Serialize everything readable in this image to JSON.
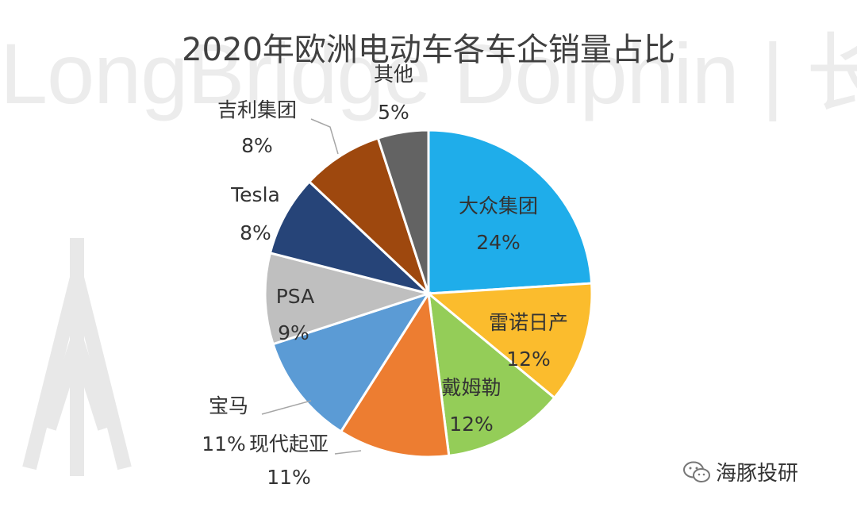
{
  "watermark": {
    "text": "LongBridge Dolphin | 长桥海豚投研"
  },
  "footer": {
    "label": "海豚投研",
    "icon": "wechat-icon"
  },
  "chart_data": {
    "type": "pie",
    "title": "2020年欧洲电动车各车企销量占比",
    "slices": [
      {
        "label": "大众集团",
        "value": 24,
        "value_label": "24%",
        "color": "#1fadea",
        "text_color": "#333333"
      },
      {
        "label": "雷诺日产",
        "value": 12,
        "value_label": "12%",
        "color": "#fbbc2d",
        "text_color": "#333333"
      },
      {
        "label": "戴姆勒",
        "value": 12,
        "value_label": "12%",
        "color": "#94cd58",
        "text_color": "#333333"
      },
      {
        "label": "现代起亚",
        "value": 11,
        "value_label": "11%",
        "color": "#ed7d31",
        "text_color": "#333333"
      },
      {
        "label": "宝马",
        "value": 11,
        "value_label": "11%",
        "color": "#5b9bd5",
        "text_color": "#333333"
      },
      {
        "label": "PSA",
        "value": 9,
        "value_label": "9%",
        "color": "#bfbfbf",
        "text_color": "#333333"
      },
      {
        "label": "Tesla",
        "value": 8,
        "value_label": "8%",
        "color": "#264478",
        "text_color": "#333333"
      },
      {
        "label": "吉利集团",
        "value": 8,
        "value_label": "8%",
        "color": "#9e480e",
        "text_color": "#333333"
      },
      {
        "label": "其他",
        "value": 5,
        "value_label": "5%",
        "color": "#636363",
        "text_color": "#333333"
      }
    ]
  }
}
